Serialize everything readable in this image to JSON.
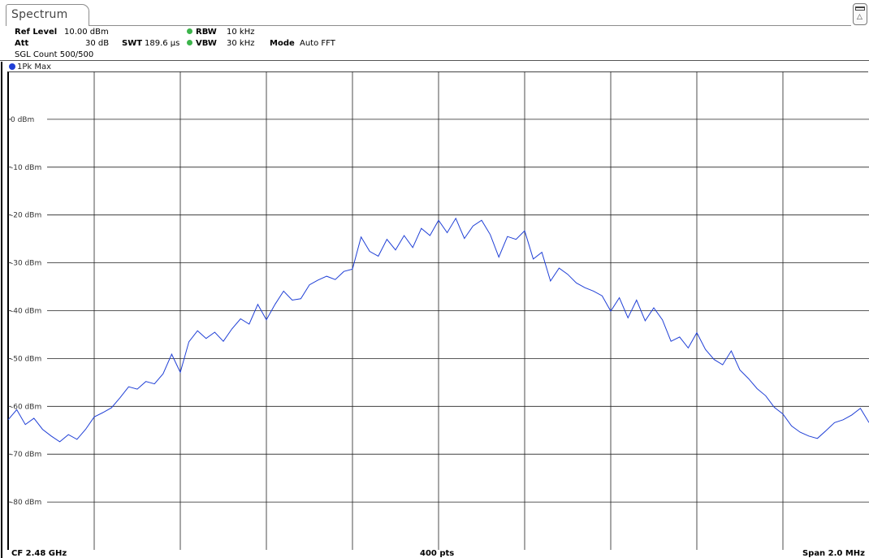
{
  "window": {
    "tab_label": "Spectrum"
  },
  "header": {
    "ref_level_label": "Ref Level",
    "ref_level_value": "10.00 dBm",
    "att_label": "Att",
    "att_value": "30 dB",
    "sgl_count": "SGL Count 500/500",
    "swt_label": "SWT",
    "swt_value": "189.6 µs",
    "rbw_label": "RBW",
    "rbw_value": "10 kHz",
    "vbw_label": "VBW",
    "vbw_value": "30 kHz",
    "mode_label": "Mode",
    "mode_value": "Auto FFT",
    "status_color": "#3cb44b"
  },
  "trace": {
    "legend_label": "1Pk Max",
    "color": "#1f3fd6"
  },
  "footer": {
    "center_freq": "CF 2.48 GHz",
    "points": "400 pts",
    "span": "Span 2.0 MHz"
  },
  "chart_data": {
    "type": "line",
    "title": "",
    "xlabel": "",
    "ylabel": "",
    "xlim": [
      2479.0,
      2481.0
    ],
    "ylim": [
      -90,
      10
    ],
    "y_ticks": [
      0,
      -10,
      -20,
      -30,
      -40,
      -50,
      -60,
      -70,
      -80
    ],
    "y_tick_labels": [
      "0 dBm",
      "-10 dBm",
      "-20 dBm",
      "-30 dBm",
      "-40 dBm",
      "-50 dBm",
      "-60 dBm",
      "-70 dBm",
      "-80 dBm"
    ],
    "x_divisions": 10,
    "grid": true,
    "series": [
      {
        "name": "1Pk Max",
        "x": [
          2479.0,
          2479.02,
          2479.04,
          2479.06,
          2479.08,
          2479.1,
          2479.12,
          2479.14,
          2479.16,
          2479.18,
          2479.2,
          2479.22,
          2479.24,
          2479.26,
          2479.28,
          2479.3,
          2479.32,
          2479.34,
          2479.36,
          2479.38,
          2479.4,
          2479.42,
          2479.44,
          2479.46,
          2479.48,
          2479.5,
          2479.52,
          2479.54,
          2479.56,
          2479.58,
          2479.6,
          2479.62,
          2479.64,
          2479.66,
          2479.68,
          2479.7,
          2479.72,
          2479.74,
          2479.76,
          2479.78,
          2479.8,
          2479.82,
          2479.84,
          2479.86,
          2479.88,
          2479.9,
          2479.92,
          2479.94,
          2479.96,
          2479.98,
          2480.0,
          2480.02,
          2480.04,
          2480.06,
          2480.08,
          2480.1,
          2480.12,
          2480.14,
          2480.16,
          2480.18,
          2480.2,
          2480.22,
          2480.24,
          2480.26,
          2480.28,
          2480.3,
          2480.32,
          2480.34,
          2480.36,
          2480.38,
          2480.4,
          2480.42,
          2480.44,
          2480.46,
          2480.48,
          2480.5,
          2480.52,
          2480.54,
          2480.56,
          2480.58,
          2480.6,
          2480.62,
          2480.64,
          2480.66,
          2480.68,
          2480.7,
          2480.72,
          2480.74,
          2480.76,
          2480.78,
          2480.8,
          2480.82,
          2480.84,
          2480.86,
          2480.88,
          2480.9,
          2480.92,
          2480.94,
          2480.96,
          2480.98,
          2481.0
        ],
        "y": [
          -62.8,
          -60.7,
          -63.8,
          -62.5,
          -64.8,
          -66.2,
          -67.4,
          -65.9,
          -66.9,
          -64.8,
          -62.2,
          -61.3,
          -60.3,
          -58.2,
          -55.9,
          -56.4,
          -54.8,
          -55.3,
          -53.2,
          -49.1,
          -52.9,
          -46.5,
          -44.2,
          -45.8,
          -44.5,
          -46.4,
          -43.8,
          -41.7,
          -42.8,
          -38.7,
          -41.9,
          -38.7,
          -35.9,
          -37.8,
          -37.5,
          -34.6,
          -33.6,
          -32.8,
          -33.5,
          -31.8,
          -31.3,
          -24.6,
          -27.6,
          -28.6,
          -25.1,
          -27.3,
          -24.3,
          -26.8,
          -22.8,
          -24.3,
          -21.1,
          -23.7,
          -20.7,
          -24.9,
          -22.3,
          -21.1,
          -24.1,
          -28.8,
          -24.5,
          -25.1,
          -23.3,
          -29.2,
          -27.8,
          -33.8,
          -31.1,
          -32.4,
          -34.2,
          -35.2,
          -35.9,
          -36.9,
          -40.1,
          -37.3,
          -41.5,
          -37.8,
          -42.1,
          -39.4,
          -41.9,
          -46.4,
          -45.5,
          -47.8,
          -44.6,
          -48.1,
          -50.2,
          -51.3,
          -48.4,
          -52.4,
          -54.2,
          -56.3,
          -57.8,
          -60.2,
          -61.6,
          -64.1,
          -65.4,
          -66.2,
          -66.7,
          -65.1,
          -63.4,
          -62.8,
          -61.8,
          -60.4,
          -63.4
        ]
      }
    ]
  }
}
